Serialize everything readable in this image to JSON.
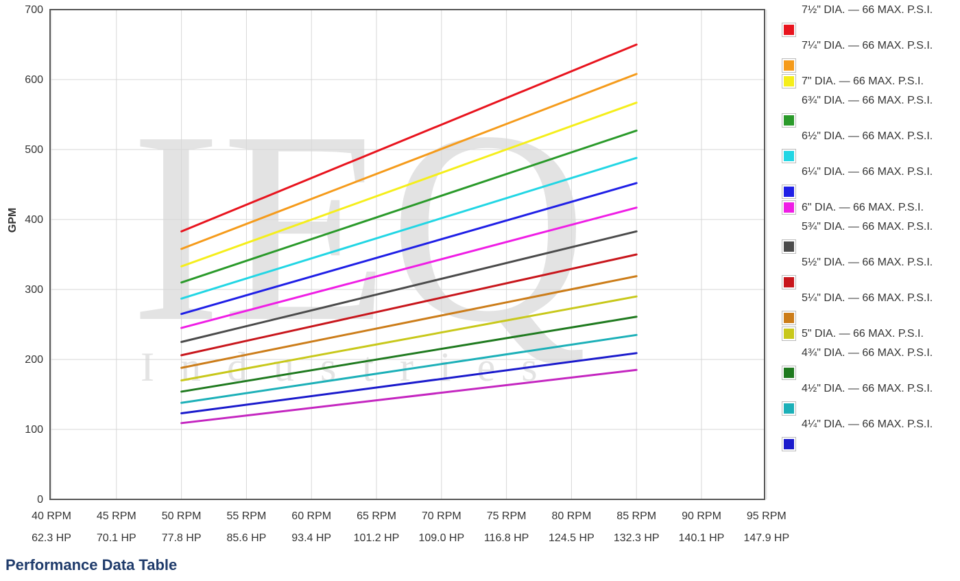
{
  "chart_data": {
    "type": "line",
    "ylabel": "GPM",
    "ylim": [
      0,
      700
    ],
    "yticks": [
      0,
      100,
      200,
      300,
      400,
      500,
      600,
      700
    ],
    "x_rpm_labels": [
      "40 RPM",
      "45 RPM",
      "50 RPM",
      "55 RPM",
      "60 RPM",
      "65 RPM",
      "70 RPM",
      "75 RPM",
      "80 RPM",
      "85 RPM",
      "90 RPM",
      "95 RPM"
    ],
    "x_hp_labels": [
      "62.3 HP",
      "70.1 HP",
      "77.8 HP",
      "85.6 HP",
      "93.4 HP",
      "101.2 HP",
      "109.0 HP",
      "116.8 HP",
      "124.5 HP",
      "132.3 HP",
      "140.1 HP",
      "147.9 HP"
    ],
    "x": [
      "50 RPM",
      "85 RPM"
    ],
    "grid": true,
    "legend_position": "right",
    "series": [
      {
        "name": "7½\" DIA. — 66 MAX. P.S.I.",
        "color": "#e8141e",
        "values": [
          383,
          650
        ]
      },
      {
        "name": "7¼\" DIA. — 66 MAX. P.S.I.",
        "color": "#f59b1b",
        "values": [
          358,
          608
        ]
      },
      {
        "name": "7\" DIA. — 66 MAX. P.S.I.",
        "color": "#f5ee1b",
        "values": [
          333,
          567
        ]
      },
      {
        "name": "6¾\" DIA. — 66 MAX. P.S.I.",
        "color": "#2a9a2a",
        "values": [
          310,
          527
        ]
      },
      {
        "name": "6½\" DIA. — 66 MAX. P.S.I.",
        "color": "#22d6e4",
        "values": [
          287,
          488
        ]
      },
      {
        "name": "6¼\" DIA. — 66 MAX. P.S.I.",
        "color": "#1f1fe6",
        "values": [
          265,
          452
        ]
      },
      {
        "name": "6\" DIA. — 66 MAX. P.S.I.",
        "color": "#ef1ee5",
        "values": [
          245,
          417
        ]
      },
      {
        "name": "5¾\" DIA. — 66 MAX. P.S.I.",
        "color": "#4b4b4b",
        "values": [
          225,
          383
        ]
      },
      {
        "name": "5½\" DIA. — 66 MAX. P.S.I.",
        "color": "#c8161c",
        "values": [
          206,
          350
        ]
      },
      {
        "name": "5¼\" DIA. — 66 MAX. P.S.I.",
        "color": "#cc7d1a",
        "values": [
          188,
          319
        ]
      },
      {
        "name": "5\" DIA. — 66 MAX. P.S.I.",
        "color": "#c8c81b",
        "values": [
          170,
          290
        ]
      },
      {
        "name": "4¾\" DIA. — 66 MAX. P.S.I.",
        "color": "#1f7a1f",
        "values": [
          154,
          261
        ]
      },
      {
        "name": "4½\" DIA. — 66 MAX. P.S.I.",
        "color": "#1cb0b8",
        "values": [
          138,
          235
        ]
      },
      {
        "name": "4¼\" DIA. — 66 MAX. P.S.I.",
        "color": "#1a1acc",
        "values": [
          123,
          209
        ]
      },
      {
        "color": "#c426c0",
        "values": [
          109,
          185
        ]
      }
    ]
  },
  "watermark": {
    "logo": "IEQ",
    "subtext": "Industries"
  },
  "table_title": "Performance Data Table"
}
